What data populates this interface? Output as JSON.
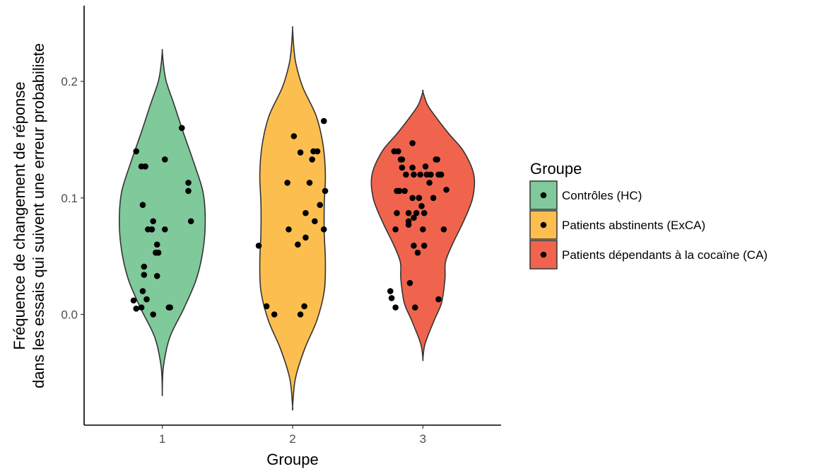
{
  "chart_data": {
    "type": "violin",
    "xlabel": "Groupe",
    "ylabel_lines": [
      "Fréquence de changement de réponse",
      "dans les essais qui suivent une erreur probabiliste"
    ],
    "categories": [
      "1",
      "2",
      "3"
    ],
    "yticks": [
      0.0,
      0.1,
      0.2
    ],
    "ytick_labels": [
      "0.0",
      "0.1",
      "0.2"
    ],
    "ylim": [
      -0.095,
      0.265
    ],
    "grid": false,
    "legend": {
      "title": "Groupe",
      "placement": "right",
      "entries": [
        "Contrôles (HC)",
        "Patients abstinents (ExCA)",
        "Patients dépendants  à la cocaïne (CA)"
      ]
    },
    "series": [
      {
        "category": "1",
        "color": "#7fc99b",
        "y_range": [
          -0.067,
          0.226
        ],
        "density": [
          [
            -0.067,
            0.0
          ],
          [
            -0.045,
            0.02
          ],
          [
            -0.02,
            0.13
          ],
          [
            0.005,
            0.38
          ],
          [
            0.03,
            0.6
          ],
          [
            0.055,
            0.72
          ],
          [
            0.08,
            0.76
          ],
          [
            0.105,
            0.72
          ],
          [
            0.13,
            0.56
          ],
          [
            0.155,
            0.38
          ],
          [
            0.18,
            0.21
          ],
          [
            0.2,
            0.07
          ],
          [
            0.215,
            0.02
          ],
          [
            0.226,
            0.0
          ]
        ],
        "points": [
          [
            0.8,
            0.14
          ],
          [
            0.84,
            0.127
          ],
          [
            0.87,
            0.127
          ],
          [
            0.78,
            0.012
          ],
          [
            0.8,
            0.005
          ],
          [
            0.85,
            0.094
          ],
          [
            0.86,
            0.041
          ],
          [
            0.86,
            0.034
          ],
          [
            0.85,
            0.02
          ],
          [
            0.84,
            0.006
          ],
          [
            0.88,
            0.013
          ],
          [
            0.89,
            0.073
          ],
          [
            0.92,
            0.073
          ],
          [
            0.93,
            0.08
          ],
          [
            0.92,
            0.073
          ],
          [
            0.93,
            0.0
          ],
          [
            0.95,
            0.053
          ],
          [
            0.96,
            0.06
          ],
          [
            0.97,
            0.053
          ],
          [
            0.96,
            0.033
          ],
          [
            1.02,
            0.133
          ],
          [
            1.02,
            0.073
          ],
          [
            1.05,
            0.006
          ],
          [
            1.06,
            0.006
          ],
          [
            1.15,
            0.16
          ],
          [
            1.2,
            0.113
          ],
          [
            1.2,
            0.106
          ],
          [
            1.22,
            0.08
          ]
        ]
      },
      {
        "category": "2",
        "color": "#fcbf4f",
        "y_range": [
          -0.079,
          0.245
        ],
        "density": [
          [
            -0.079,
            0.0
          ],
          [
            -0.055,
            0.05
          ],
          [
            -0.03,
            0.21
          ],
          [
            -0.005,
            0.43
          ],
          [
            0.02,
            0.56
          ],
          [
            0.045,
            0.58
          ],
          [
            0.07,
            0.56
          ],
          [
            0.095,
            0.56
          ],
          [
            0.12,
            0.58
          ],
          [
            0.145,
            0.54
          ],
          [
            0.17,
            0.42
          ],
          [
            0.195,
            0.18
          ],
          [
            0.215,
            0.06
          ],
          [
            0.23,
            0.02
          ],
          [
            0.245,
            0.0
          ]
        ],
        "points": [
          [
            1.74,
            0.059
          ],
          [
            1.8,
            0.007
          ],
          [
            1.86,
            0.0
          ],
          [
            1.96,
            0.113
          ],
          [
            1.97,
            0.073
          ],
          [
            2.01,
            0.153
          ],
          [
            2.04,
            0.06
          ],
          [
            2.06,
            0.139
          ],
          [
            2.06,
            0.0
          ],
          [
            2.09,
            0.007
          ],
          [
            2.1,
            0.087
          ],
          [
            2.1,
            0.066
          ],
          [
            2.13,
            0.113
          ],
          [
            2.15,
            0.133
          ],
          [
            2.16,
            0.14
          ],
          [
            2.17,
            0.08
          ],
          [
            2.19,
            0.14
          ],
          [
            2.21,
            0.094
          ],
          [
            2.24,
            0.073
          ],
          [
            2.25,
            0.106
          ],
          [
            2.24,
            0.166
          ]
        ]
      },
      {
        "category": "3",
        "color": "#f0644e",
        "y_range": [
          -0.038,
          0.191
        ],
        "density": [
          [
            -0.038,
            0.0
          ],
          [
            -0.025,
            0.04
          ],
          [
            -0.005,
            0.2
          ],
          [
            0.01,
            0.33
          ],
          [
            0.03,
            0.39
          ],
          [
            0.045,
            0.4
          ],
          [
            0.06,
            0.52
          ],
          [
            0.08,
            0.72
          ],
          [
            0.1,
            0.88
          ],
          [
            0.12,
            0.9
          ],
          [
            0.14,
            0.72
          ],
          [
            0.155,
            0.46
          ],
          [
            0.17,
            0.22
          ],
          [
            0.18,
            0.08
          ],
          [
            0.191,
            0.0
          ]
        ],
        "points": [
          [
            2.75,
            0.02
          ],
          [
            2.76,
            0.014
          ],
          [
            2.79,
            0.006
          ],
          [
            2.78,
            0.14
          ],
          [
            2.81,
            0.14
          ],
          [
            2.83,
            0.133
          ],
          [
            2.84,
            0.133
          ],
          [
            2.8,
            0.106
          ],
          [
            2.82,
            0.106
          ],
          [
            2.86,
            0.106
          ],
          [
            2.87,
            0.12
          ],
          [
            2.89,
            0.087
          ],
          [
            2.89,
            0.08
          ],
          [
            2.89,
            0.077
          ],
          [
            2.79,
            0.073
          ],
          [
            2.8,
            0.087
          ],
          [
            2.84,
            0.126
          ],
          [
            2.92,
            0.126
          ],
          [
            2.93,
            0.12
          ],
          [
            2.92,
            0.1
          ],
          [
            2.93,
            0.083
          ],
          [
            2.93,
            0.059
          ],
          [
            2.94,
            0.006
          ],
          [
            2.92,
            0.147
          ],
          [
            2.95,
            0.087
          ],
          [
            2.96,
            0.053
          ],
          [
            2.97,
            0.1
          ],
          [
            2.98,
            0.12
          ],
          [
            2.99,
            0.093
          ],
          [
            3.0,
            0.073
          ],
          [
            3.01,
            0.059
          ],
          [
            3.02,
            0.127
          ],
          [
            3.03,
            0.12
          ],
          [
            3.05,
            0.113
          ],
          [
            3.06,
            0.12
          ],
          [
            3.08,
            0.1
          ],
          [
            3.1,
            0.133
          ],
          [
            3.11,
            0.133
          ],
          [
            3.12,
            0.12
          ],
          [
            3.14,
            0.12
          ],
          [
            3.16,
            0.073
          ],
          [
            3.18,
            0.107
          ],
          [
            3.12,
            0.013
          ],
          [
            2.9,
            0.027
          ],
          [
            2.97,
            0.1
          ],
          [
            3.01,
            0.087
          ]
        ]
      }
    ]
  }
}
